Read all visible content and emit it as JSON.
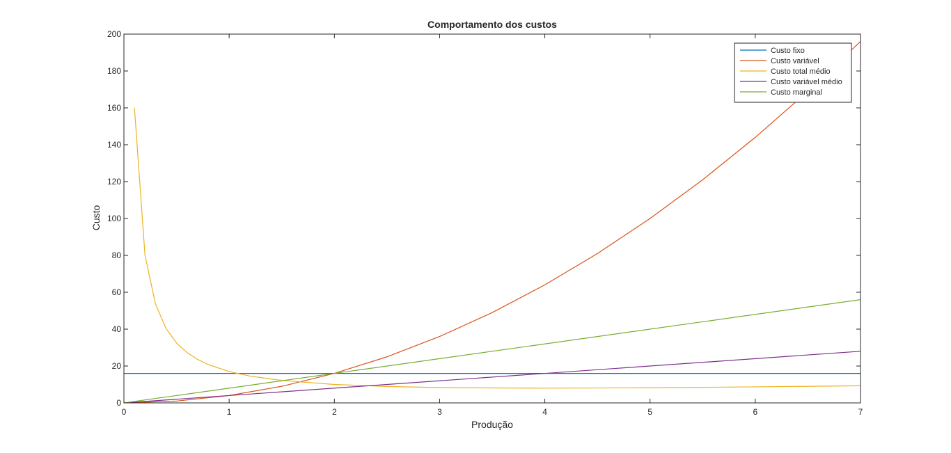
{
  "chart_data": {
    "type": "line",
    "title": "Comportamento dos custos",
    "xlabel": "Produção",
    "ylabel": "Custo",
    "xlim": [
      0,
      7
    ],
    "ylim": [
      0,
      200
    ],
    "xticks": [
      0,
      1,
      2,
      3,
      4,
      5,
      6,
      7
    ],
    "yticks": [
      0,
      20,
      40,
      60,
      80,
      100,
      120,
      140,
      160,
      180,
      200
    ],
    "grid": false,
    "legend_position": "top-right",
    "series": [
      {
        "name": "Custo fixo",
        "color": "#0072BD",
        "x": [
          0,
          7
        ],
        "y": [
          16,
          16
        ]
      },
      {
        "name": "Custo variável",
        "color": "#D95319",
        "x": [
          0,
          0.5,
          1,
          1.5,
          2,
          2.5,
          3,
          3.5,
          4,
          4.5,
          5,
          5.5,
          6,
          6.5,
          7
        ],
        "y": [
          0,
          1,
          4,
          9,
          16,
          25,
          36,
          49,
          64,
          81,
          100,
          121,
          144,
          169,
          196
        ]
      },
      {
        "name": "Custo total médio",
        "color": "#EDB120",
        "x": [
          0.1,
          0.2,
          0.3,
          0.4,
          0.5,
          0.6,
          0.7,
          0.8,
          1,
          1.2,
          1.5,
          2,
          2.5,
          3,
          3.5,
          4,
          5,
          6,
          7
        ],
        "y": [
          160.1,
          80.2,
          53.6,
          40.4,
          32.5,
          27.3,
          23.6,
          20.8,
          17,
          14.5,
          12.2,
          10,
          8.9,
          8.3,
          8.1,
          8,
          8.2,
          8.7,
          9.3
        ]
      },
      {
        "name": "Custo variável médio",
        "color": "#7E2F8E",
        "x": [
          0,
          7
        ],
        "y": [
          0,
          28
        ]
      },
      {
        "name": "Custo marginal",
        "color": "#77AC30",
        "x": [
          0,
          7
        ],
        "y": [
          0,
          56
        ]
      }
    ]
  }
}
